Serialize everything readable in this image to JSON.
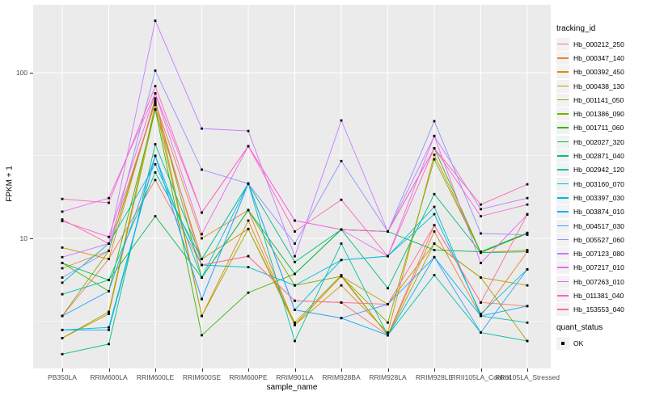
{
  "figure": {
    "ylabel": "FPKM + 1",
    "xlabel": "sample_name",
    "y_ticks": [
      {
        "label": "100",
        "value": 100
      },
      {
        "label": "10",
        "value": 10
      }
    ]
  },
  "legend": {
    "title": "tracking_id"
  },
  "legend2": {
    "title": "quant_status",
    "items": [
      {
        "label": "OK"
      }
    ]
  },
  "colors": {
    "panel_bg": "#EBEBEB",
    "grid": "#FFFFFF",
    "tick_text": "#4D4D4D",
    "axis_title": "#000000",
    "marker": "#000000",
    "legend_key_bg": "#F2F2F2"
  },
  "chart_data": {
    "type": "line",
    "title": "",
    "xlabel": "sample_name",
    "ylabel": "FPKM + 1",
    "y_scale": "log10",
    "ylim": [
      1.9,
      230
    ],
    "y_major_gridlines": [
      10,
      100
    ],
    "y_minor_gridlines": [
      3.162,
      31.62
    ],
    "grid": "on",
    "legend_position": "right",
    "legend_title": "tracking_id",
    "quant_status": {
      "title": "quant_status",
      "items": [
        "OK"
      ]
    },
    "marker": "black-square",
    "categories": [
      "PB350LA",
      "RRIM600LA",
      "RRIM600LE",
      "RRIM600SE",
      "RRIM600PE",
      "RRIM901LA",
      "RRIM928BA",
      "RRIM928LA",
      "RRIM928LE",
      "RRII105LA_Control",
      "RRII105LA_Stressed"
    ],
    "series": [
      {
        "name": "Hb_000212_250",
        "color": "#F8766D",
        "values": [
          3.4,
          7.5,
          22.5,
          6.9,
          7.8,
          4.2,
          4.1,
          2.6,
          12.0,
          4.1,
          3.9
        ]
      },
      {
        "name": "Hb_000347_140",
        "color": "#EA8331",
        "values": [
          6.6,
          8.4,
          66,
          10.0,
          14.8,
          3.0,
          5.9,
          2.6,
          11.0,
          3.4,
          8.3
        ]
      },
      {
        "name": "Hb_000392_450",
        "color": "#D89000",
        "values": [
          8.8,
          7.5,
          70,
          3.4,
          12.8,
          3.0,
          5.2,
          2.7,
          32,
          8.2,
          8.5
        ]
      },
      {
        "name": "Hb_000438_130",
        "color": "#C09B00",
        "values": [
          2.5,
          3.5,
          60,
          7.5,
          11.4,
          3.0,
          5.9,
          4.0,
          9.3,
          5.8,
          5.2
        ]
      },
      {
        "name": "Hb_001141_050",
        "color": "#A3A500",
        "values": [
          2.5,
          3.6,
          64,
          3.4,
          11.4,
          3.1,
          6.0,
          2.6,
          9.3,
          5.8,
          2.4
        ]
      },
      {
        "name": "Hb_001386_090",
        "color": "#7CAE00",
        "values": [
          3.4,
          8.4,
          68,
          5.8,
          14.8,
          5.2,
          5.9,
          3.1,
          30,
          8.2,
          10.7
        ]
      },
      {
        "name": "Hb_001711_060",
        "color": "#39B600",
        "values": [
          7.1,
          4.8,
          60,
          2.6,
          4.7,
          6.1,
          11.3,
          11.0,
          35,
          8.2,
          10.7
        ]
      },
      {
        "name": "Hb_002027_320",
        "color": "#00BB4E",
        "values": [
          7.1,
          5.6,
          13.6,
          5.8,
          14.8,
          6.1,
          11.3,
          11.0,
          8.5,
          8.3,
          10.8
        ]
      },
      {
        "name": "Hb_002871_040",
        "color": "#00BF7D",
        "values": [
          2.0,
          2.3,
          37,
          7.5,
          21.4,
          7.2,
          11.3,
          5.0,
          18.5,
          8.2,
          8.3
        ]
      },
      {
        "name": "Hb_002942_120",
        "color": "#00C1A3",
        "values": [
          4.6,
          5.6,
          25,
          7.5,
          21.4,
          2.4,
          9.3,
          2.6,
          6.0,
          2.7,
          2.4
        ]
      },
      {
        "name": "Hb_003160_070",
        "color": "#00BFC4",
        "values": [
          5.4,
          9.3,
          28,
          6.9,
          6.7,
          5.2,
          7.4,
          7.8,
          15.5,
          3.4,
          3.1
        ]
      },
      {
        "name": "Hb_003397_030",
        "color": "#00BADE",
        "values": [
          2.8,
          2.9,
          31.5,
          5.8,
          21.4,
          3.7,
          7.4,
          7.8,
          14.0,
          3.5,
          6.5
        ]
      },
      {
        "name": "Hb_003874_010",
        "color": "#00B0F6",
        "values": [
          2.8,
          2.8,
          31.5,
          4.3,
          21.4,
          3.7,
          3.3,
          2.6,
          7.7,
          3.4,
          3.9
        ]
      },
      {
        "name": "Hb_004517_030",
        "color": "#35A2FF",
        "values": [
          3.4,
          4.8,
          31.5,
          4.3,
          21.4,
          3.7,
          3.3,
          4.0,
          7.7,
          2.7,
          6.5
        ]
      },
      {
        "name": "Hb_005527_060",
        "color": "#9590FF",
        "values": [
          5.8,
          8.4,
          103,
          26,
          21.4,
          9.3,
          29.3,
          11.0,
          51,
          10.7,
          10.5
        ]
      },
      {
        "name": "Hb_007123_080",
        "color": "#C77CFF",
        "values": [
          7.7,
          9.3,
          206,
          46,
          44.5,
          7.8,
          51.5,
          11.0,
          41.5,
          15.0,
          17.5
        ]
      },
      {
        "name": "Hb_007217_010",
        "color": "#E76BF3",
        "values": [
          14.5,
          17.5,
          75,
          10.6,
          36,
          12.8,
          11.3,
          7.8,
          41.5,
          7.1,
          13.9
        ]
      },
      {
        "name": "Hb_007263_010",
        "color": "#FA62DB",
        "values": [
          12.7,
          10.2,
          75,
          14.3,
          36,
          12.8,
          11.3,
          11.0,
          35,
          13.6,
          16.0
        ]
      },
      {
        "name": "Hb_011381_040",
        "color": "#FF62BC",
        "values": [
          17.3,
          16.4,
          83,
          14.3,
          36,
          11.0,
          17.1,
          7.8,
          35,
          16.0,
          21.2
        ]
      },
      {
        "name": "Hb_153553_040",
        "color": "#FF6A98",
        "values": [
          13.0,
          9.3,
          66,
          6.9,
          7.8,
          4.2,
          4.1,
          4.0,
          12.0,
          4.1,
          14.0
        ]
      }
    ]
  }
}
